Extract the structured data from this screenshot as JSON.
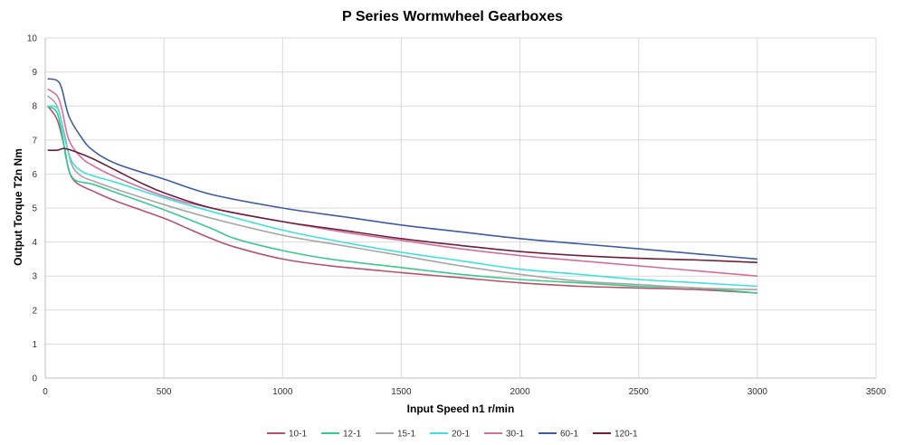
{
  "chart_data": {
    "type": "line",
    "title": "P Series Wormwheel Gearboxes",
    "xlabel": "Input Speed n1 r/min",
    "ylabel": "Output Torque T2n Nm",
    "xlim": [
      0,
      3500
    ],
    "ylim": [
      0,
      10
    ],
    "x_ticks": [
      0,
      500,
      1000,
      1500,
      2000,
      2500,
      3000,
      3500
    ],
    "y_ticks": [
      0,
      1,
      2,
      3,
      4,
      5,
      6,
      7,
      8,
      9,
      10
    ],
    "grid": true,
    "legend_position": "bottom",
    "series": [
      {
        "name": "10-1",
        "color": "#b5536b",
        "points": [
          [
            10,
            8.0
          ],
          [
            50,
            7.6
          ],
          [
            80,
            6.8
          ],
          [
            100,
            6.1
          ],
          [
            130,
            5.75
          ],
          [
            200,
            5.5
          ],
          [
            300,
            5.2
          ],
          [
            500,
            4.7
          ],
          [
            600,
            4.4
          ],
          [
            700,
            4.1
          ],
          [
            800,
            3.85
          ],
          [
            1000,
            3.5
          ],
          [
            1200,
            3.3
          ],
          [
            1500,
            3.1
          ],
          [
            1750,
            2.95
          ],
          [
            2000,
            2.8
          ],
          [
            2250,
            2.7
          ],
          [
            2500,
            2.65
          ],
          [
            2750,
            2.6
          ],
          [
            3000,
            2.5
          ]
        ]
      },
      {
        "name": "12-1",
        "color": "#3cc88e",
        "points": [
          [
            10,
            8.0
          ],
          [
            50,
            7.8
          ],
          [
            75,
            7.0
          ],
          [
            90,
            6.4
          ],
          [
            120,
            5.85
          ],
          [
            200,
            5.7
          ],
          [
            300,
            5.45
          ],
          [
            500,
            4.95
          ],
          [
            700,
            4.4
          ],
          [
            800,
            4.1
          ],
          [
            1000,
            3.75
          ],
          [
            1200,
            3.5
          ],
          [
            1500,
            3.25
          ],
          [
            1750,
            3.05
          ],
          [
            2000,
            2.9
          ],
          [
            2250,
            2.8
          ],
          [
            2500,
            2.7
          ],
          [
            2750,
            2.65
          ],
          [
            3000,
            2.5
          ]
        ]
      },
      {
        "name": "15-1",
        "color": "#a6a6a6",
        "points": [
          [
            10,
            8.3
          ],
          [
            50,
            8.0
          ],
          [
            80,
            7.2
          ],
          [
            110,
            6.3
          ],
          [
            150,
            5.95
          ],
          [
            200,
            5.8
          ],
          [
            300,
            5.55
          ],
          [
            500,
            5.1
          ],
          [
            700,
            4.7
          ],
          [
            1000,
            4.2
          ],
          [
            1250,
            3.9
          ],
          [
            1500,
            3.6
          ],
          [
            1750,
            3.3
          ],
          [
            2000,
            3.05
          ],
          [
            2250,
            2.85
          ],
          [
            2500,
            2.75
          ],
          [
            2750,
            2.65
          ],
          [
            3000,
            2.6
          ]
        ]
      },
      {
        "name": "20-1",
        "color": "#3ee0e0",
        "points": [
          [
            10,
            8.0
          ],
          [
            55,
            7.9
          ],
          [
            80,
            7.1
          ],
          [
            110,
            6.4
          ],
          [
            150,
            6.1
          ],
          [
            200,
            5.95
          ],
          [
            300,
            5.75
          ],
          [
            500,
            5.3
          ],
          [
            700,
            4.9
          ],
          [
            1000,
            4.35
          ],
          [
            1250,
            4.0
          ],
          [
            1500,
            3.7
          ],
          [
            1750,
            3.45
          ],
          [
            2000,
            3.2
          ],
          [
            2250,
            3.05
          ],
          [
            2500,
            2.9
          ],
          [
            2750,
            2.8
          ],
          [
            3000,
            2.7
          ]
        ]
      },
      {
        "name": "30-1",
        "color": "#d36f9c",
        "points": [
          [
            10,
            8.5
          ],
          [
            50,
            8.3
          ],
          [
            70,
            7.9
          ],
          [
            100,
            7.0
          ],
          [
            150,
            6.5
          ],
          [
            200,
            6.25
          ],
          [
            300,
            5.9
          ],
          [
            500,
            5.35
          ],
          [
            700,
            5.0
          ],
          [
            1000,
            4.6
          ],
          [
            1250,
            4.3
          ],
          [
            1500,
            4.05
          ],
          [
            1750,
            3.8
          ],
          [
            2000,
            3.6
          ],
          [
            2250,
            3.45
          ],
          [
            2500,
            3.3
          ],
          [
            2750,
            3.15
          ],
          [
            3000,
            3.0
          ]
        ]
      },
      {
        "name": "60-1",
        "color": "#3e5ba6",
        "points": [
          [
            10,
            8.8
          ],
          [
            50,
            8.75
          ],
          [
            70,
            8.5
          ],
          [
            100,
            7.7
          ],
          [
            150,
            7.1
          ],
          [
            200,
            6.7
          ],
          [
            300,
            6.3
          ],
          [
            500,
            5.85
          ],
          [
            700,
            5.4
          ],
          [
            1000,
            5.0
          ],
          [
            1250,
            4.75
          ],
          [
            1500,
            4.5
          ],
          [
            1750,
            4.3
          ],
          [
            2000,
            4.1
          ],
          [
            2250,
            3.95
          ],
          [
            2500,
            3.8
          ],
          [
            2750,
            3.65
          ],
          [
            3000,
            3.5
          ]
        ]
      },
      {
        "name": "120-1",
        "color": "#6e1f3a",
        "points": [
          [
            10,
            6.7
          ],
          [
            50,
            6.7
          ],
          [
            80,
            6.75
          ],
          [
            130,
            6.65
          ],
          [
            200,
            6.45
          ],
          [
            300,
            6.1
          ],
          [
            400,
            5.75
          ],
          [
            500,
            5.45
          ],
          [
            700,
            5.0
          ],
          [
            1000,
            4.6
          ],
          [
            1250,
            4.35
          ],
          [
            1500,
            4.1
          ],
          [
            1750,
            3.9
          ],
          [
            2000,
            3.72
          ],
          [
            2250,
            3.6
          ],
          [
            2500,
            3.52
          ],
          [
            2750,
            3.47
          ],
          [
            3000,
            3.4
          ]
        ]
      }
    ]
  }
}
